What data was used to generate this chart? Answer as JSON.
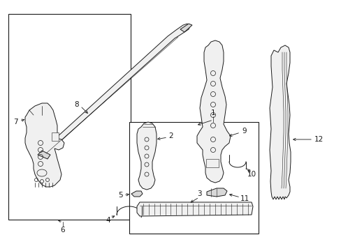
{
  "bg_color": "#ffffff",
  "line_color": "#1a1a1a",
  "fill_color": "#f0f0f0",
  "fill_dark": "#d8d8d8",
  "figsize": [
    4.89,
    3.6
  ],
  "dpi": 100,
  "lw": 0.7
}
